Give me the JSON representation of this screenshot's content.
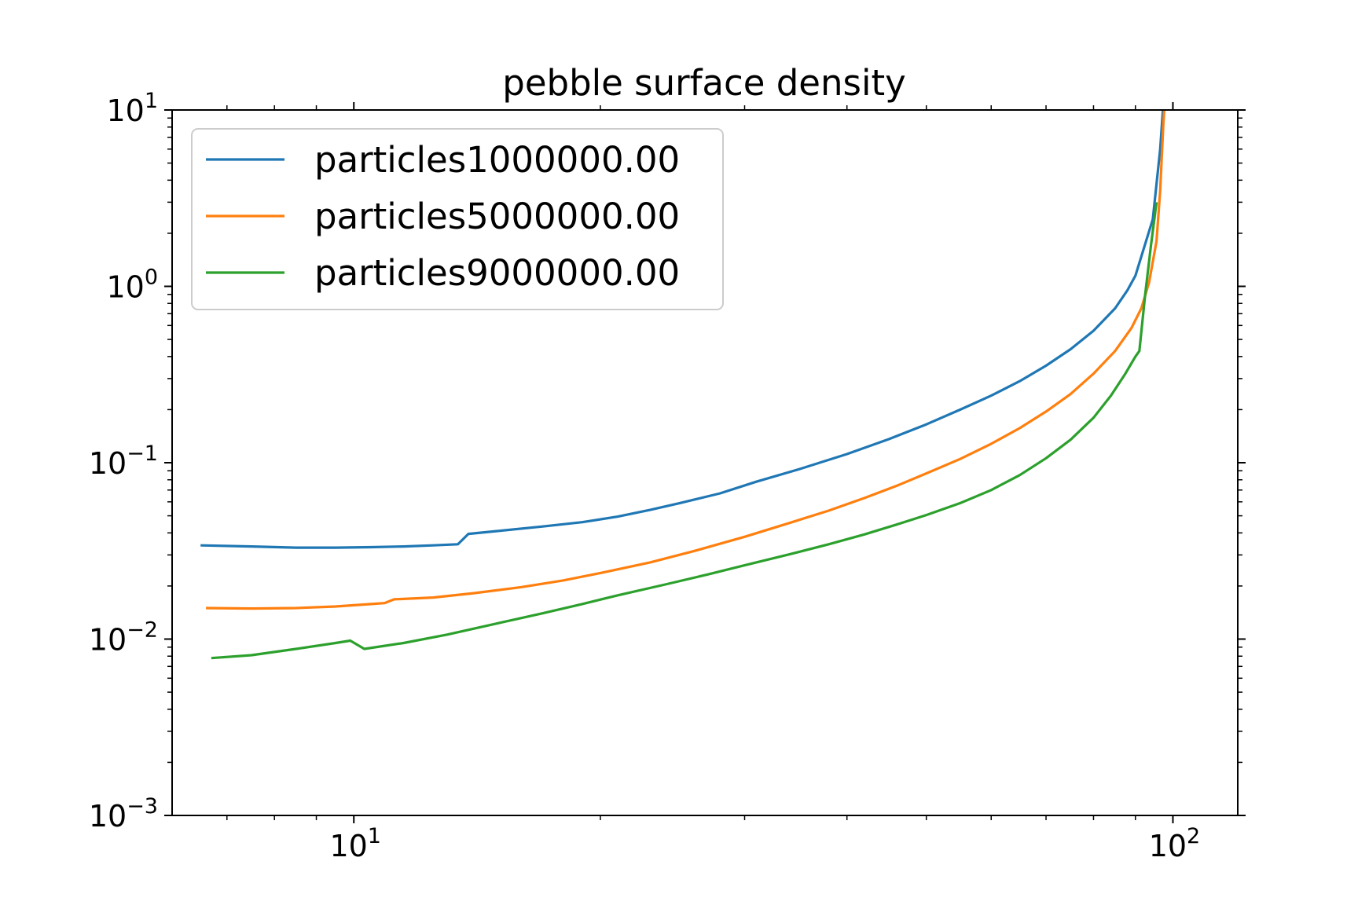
{
  "chart_data": {
    "type": "line",
    "title": "pebble surface density",
    "xlabel": "",
    "ylabel": "",
    "xscale": "log",
    "yscale": "log",
    "xlim": [
      6.0,
      120.0
    ],
    "ylim": [
      0.001,
      10
    ],
    "grid": false,
    "legend_position": "upper-left",
    "x_ticks": [
      {
        "value": 10,
        "base": "10",
        "exp": "1"
      },
      {
        "value": 100,
        "base": "10",
        "exp": "2"
      }
    ],
    "y_ticks": [
      {
        "value": 0.001,
        "base": "10",
        "exp": "−3"
      },
      {
        "value": 0.01,
        "base": "10",
        "exp": "−2"
      },
      {
        "value": 0.1,
        "base": "10",
        "exp": "−1"
      },
      {
        "value": 1,
        "base": "10",
        "exp": "0"
      },
      {
        "value": 10,
        "base": "10",
        "exp": "1"
      }
    ],
    "series": [
      {
        "name": "particles1000000.00",
        "color": "#1f77b4",
        "points": [
          [
            6.5,
            0.034
          ],
          [
            7.5,
            0.0335
          ],
          [
            8.5,
            0.033
          ],
          [
            9.5,
            0.033
          ],
          [
            10.5,
            0.0332
          ],
          [
            11.5,
            0.0335
          ],
          [
            12.5,
            0.034
          ],
          [
            13.4,
            0.0345
          ],
          [
            13.8,
            0.0395
          ],
          [
            15,
            0.041
          ],
          [
            17,
            0.0435
          ],
          [
            19,
            0.046
          ],
          [
            21,
            0.0495
          ],
          [
            23,
            0.054
          ],
          [
            25,
            0.059
          ],
          [
            28,
            0.067
          ],
          [
            31,
            0.078
          ],
          [
            35,
            0.092
          ],
          [
            40,
            0.112
          ],
          [
            45,
            0.136
          ],
          [
            50,
            0.165
          ],
          [
            55,
            0.2
          ],
          [
            60,
            0.24
          ],
          [
            65,
            0.29
          ],
          [
            70,
            0.355
          ],
          [
            75,
            0.44
          ],
          [
            80,
            0.56
          ],
          [
            85,
            0.75
          ],
          [
            88,
            0.95
          ],
          [
            90,
            1.15
          ],
          [
            92,
            1.6
          ],
          [
            94.5,
            2.4
          ],
          [
            96.5,
            6
          ],
          [
            97.5,
            12
          ]
        ]
      },
      {
        "name": "particles5000000.00",
        "color": "#ff7f0e",
        "points": [
          [
            6.6,
            0.015
          ],
          [
            7.5,
            0.0149
          ],
          [
            8.5,
            0.015
          ],
          [
            9.5,
            0.0153
          ],
          [
            10.5,
            0.0158
          ],
          [
            10.9,
            0.016
          ],
          [
            11.2,
            0.0168
          ],
          [
            12.5,
            0.0172
          ],
          [
            14,
            0.0182
          ],
          [
            16,
            0.0197
          ],
          [
            18,
            0.0215
          ],
          [
            20,
            0.0237
          ],
          [
            23,
            0.0272
          ],
          [
            26,
            0.0315
          ],
          [
            30,
            0.038
          ],
          [
            34,
            0.0455
          ],
          [
            38,
            0.0535
          ],
          [
            42,
            0.063
          ],
          [
            46,
            0.074
          ],
          [
            50,
            0.087
          ],
          [
            55,
            0.105
          ],
          [
            60,
            0.128
          ],
          [
            65,
            0.157
          ],
          [
            70,
            0.195
          ],
          [
            75,
            0.245
          ],
          [
            80,
            0.32
          ],
          [
            85,
            0.43
          ],
          [
            89,
            0.58
          ],
          [
            91.5,
            0.75
          ],
          [
            93.5,
            1.05
          ],
          [
            95.5,
            1.8
          ],
          [
            96.5,
            3.5
          ],
          [
            97.3,
            8
          ],
          [
            97.8,
            12
          ]
        ]
      },
      {
        "name": "particles9000000.00",
        "color": "#2ca02c",
        "points": [
          [
            6.7,
            0.0078
          ],
          [
            7.5,
            0.0081
          ],
          [
            8.5,
            0.0088
          ],
          [
            9.5,
            0.0095
          ],
          [
            9.9,
            0.0098
          ],
          [
            10.3,
            0.0088
          ],
          [
            11.5,
            0.0095
          ],
          [
            13,
            0.0106
          ],
          [
            15,
            0.0123
          ],
          [
            17,
            0.014
          ],
          [
            19,
            0.0158
          ],
          [
            21,
            0.0177
          ],
          [
            24,
            0.0204
          ],
          [
            27,
            0.0232
          ],
          [
            30,
            0.0262
          ],
          [
            34,
            0.0302
          ],
          [
            38,
            0.0345
          ],
          [
            42,
            0.0392
          ],
          [
            46,
            0.0446
          ],
          [
            50,
            0.0505
          ],
          [
            55,
            0.059
          ],
          [
            60,
            0.07
          ],
          [
            65,
            0.085
          ],
          [
            70,
            0.106
          ],
          [
            75,
            0.135
          ],
          [
            80,
            0.18
          ],
          [
            84,
            0.24
          ],
          [
            87.5,
            0.32
          ],
          [
            90,
            0.4
          ],
          [
            91,
            0.43
          ],
          [
            92.5,
            0.9
          ],
          [
            94,
            1.7
          ],
          [
            95.5,
            3.0
          ]
        ]
      }
    ]
  }
}
